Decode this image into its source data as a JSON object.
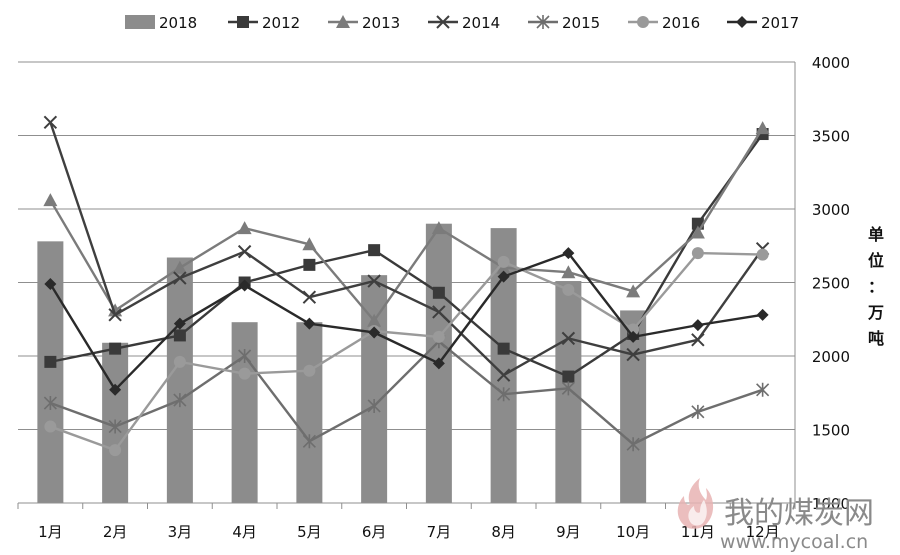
{
  "chart_data": {
    "type": "bar+line",
    "categories": [
      "1月",
      "2月",
      "3月",
      "4月",
      "5月",
      "6月",
      "7月",
      "8月",
      "9月",
      "10月",
      "11月",
      "12月"
    ],
    "series": [
      {
        "name": "2018",
        "kind": "bar",
        "color": "#8c8c8c",
        "values": [
          2780,
          2090,
          2670,
          2230,
          2230,
          2550,
          2900,
          2870,
          2510,
          2310,
          null,
          null
        ]
      },
      {
        "name": "2012",
        "kind": "line",
        "marker": "square",
        "color": "#3a3a3a",
        "values": [
          1960,
          2050,
          2140,
          2500,
          2620,
          2720,
          2430,
          2050,
          1860,
          2150,
          2900,
          3510
        ]
      },
      {
        "name": "2013",
        "kind": "line",
        "marker": "triangle",
        "color": "#7b7b7b",
        "values": [
          3060,
          2310,
          2600,
          2870,
          2760,
          2240,
          2870,
          2600,
          2570,
          2440,
          2840,
          3550
        ]
      },
      {
        "name": "2014",
        "kind": "line",
        "marker": "x",
        "color": "#3f3f3f",
        "values": [
          3590,
          2280,
          2530,
          2710,
          2400,
          2510,
          2300,
          1870,
          2120,
          2010,
          2110,
          2730
        ]
      },
      {
        "name": "2015",
        "kind": "line",
        "marker": "star",
        "color": "#6e6e6e",
        "values": [
          1680,
          1520,
          1700,
          2000,
          1420,
          1660,
          2100,
          1740,
          1780,
          1400,
          1620,
          1770
        ]
      },
      {
        "name": "2016",
        "kind": "line",
        "marker": "circle",
        "color": "#9a9a9a",
        "values": [
          1520,
          1360,
          1960,
          1880,
          1900,
          2170,
          2130,
          2640,
          2450,
          2180,
          2700,
          2690
        ]
      },
      {
        "name": "2017",
        "kind": "line",
        "marker": "diamond",
        "color": "#2a2a2a",
        "values": [
          2490,
          1770,
          2220,
          2480,
          2220,
          2160,
          1950,
          2540,
          2700,
          2130,
          2210,
          2280
        ]
      }
    ],
    "y_axis": {
      "position": "right",
      "min": 1000,
      "max": 4000,
      "step": 500,
      "ticks": [
        "1000",
        "1500",
        "2000",
        "2500",
        "3000",
        "3500",
        "4000"
      ]
    },
    "ylabel": "单位：万吨",
    "grid": true,
    "legend_position": "top"
  },
  "watermark": {
    "text": "我的煤炭网",
    "url": "www.mycoal.cn",
    "icon": "flame-logo-icon"
  }
}
